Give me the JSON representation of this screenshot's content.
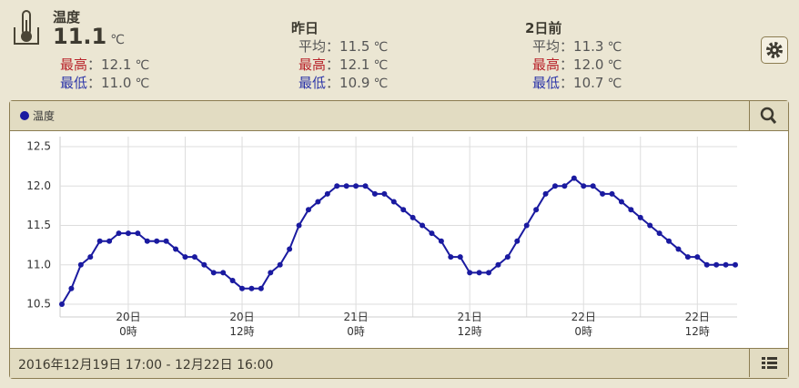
{
  "header": {
    "separator": "：",
    "unit": "℃",
    "current": {
      "title": "温度",
      "value": "11.1",
      "rows": [
        {
          "label": "最高",
          "value": "12.1"
        },
        {
          "label": "最低",
          "value": "11.0"
        }
      ]
    },
    "days": [
      {
        "title": "昨日",
        "rows": [
          {
            "label": "平均",
            "value": "11.5"
          },
          {
            "label": "最高",
            "value": "12.1"
          },
          {
            "label": "最低",
            "value": "10.9"
          }
        ]
      },
      {
        "title": "2日前",
        "rows": [
          {
            "label": "平均",
            "value": "11.3"
          },
          {
            "label": "最高",
            "value": "12.0"
          },
          {
            "label": "最低",
            "value": "10.7"
          }
        ]
      }
    ]
  },
  "footer": {
    "range": "2016年12月19日 17:00 - 12月22日 16:00"
  },
  "chart_data": {
    "type": "line",
    "categories": [
      null,
      null,
      null,
      null,
      null,
      null,
      null,
      "20日\n0時",
      null,
      null,
      null,
      null,
      null,
      null,
      null,
      null,
      null,
      null,
      null,
      "20日\n12時",
      null,
      null,
      null,
      null,
      null,
      null,
      null,
      null,
      null,
      null,
      null,
      "21日\n0時",
      null,
      null,
      null,
      null,
      null,
      null,
      null,
      null,
      null,
      null,
      null,
      "21日\n12時",
      null,
      null,
      null,
      null,
      null,
      null,
      null,
      null,
      null,
      null,
      null,
      "22日\n0時",
      null,
      null,
      null,
      null,
      null,
      null,
      null,
      null,
      null,
      null,
      null,
      "22日\n12時",
      null,
      null,
      null,
      null
    ],
    "series": [
      {
        "name": "温度",
        "color": "#1a1aa0",
        "values": [
          10.5,
          10.7,
          11.0,
          11.1,
          11.3,
          11.3,
          11.4,
          11.4,
          11.4,
          11.3,
          11.3,
          11.3,
          11.2,
          11.1,
          11.1,
          11.0,
          10.9,
          10.9,
          10.8,
          10.7,
          10.7,
          10.7,
          10.9,
          11.0,
          11.2,
          11.5,
          11.7,
          11.8,
          11.9,
          12.0,
          12.0,
          12.0,
          12.0,
          11.9,
          11.9,
          11.8,
          11.7,
          11.6,
          11.5,
          11.4,
          11.3,
          11.1,
          11.1,
          10.9,
          10.9,
          10.9,
          11.0,
          11.1,
          11.3,
          11.5,
          11.7,
          11.9,
          12.0,
          12.0,
          12.1,
          12.0,
          12.0,
          11.9,
          11.9,
          11.8,
          11.7,
          11.6,
          11.5,
          11.4,
          11.3,
          11.2,
          11.1,
          11.1,
          11.0,
          11.0,
          11.0,
          11.0
        ]
      }
    ],
    "ylim": [
      10.5,
      12.5
    ],
    "yticks": [
      10.5,
      {
        "value": 11.0,
        "label": "11.0"
      },
      11.5,
      {
        "value": 12.0,
        "label": "12.0"
      },
      12.5
    ],
    "grid": true
  }
}
